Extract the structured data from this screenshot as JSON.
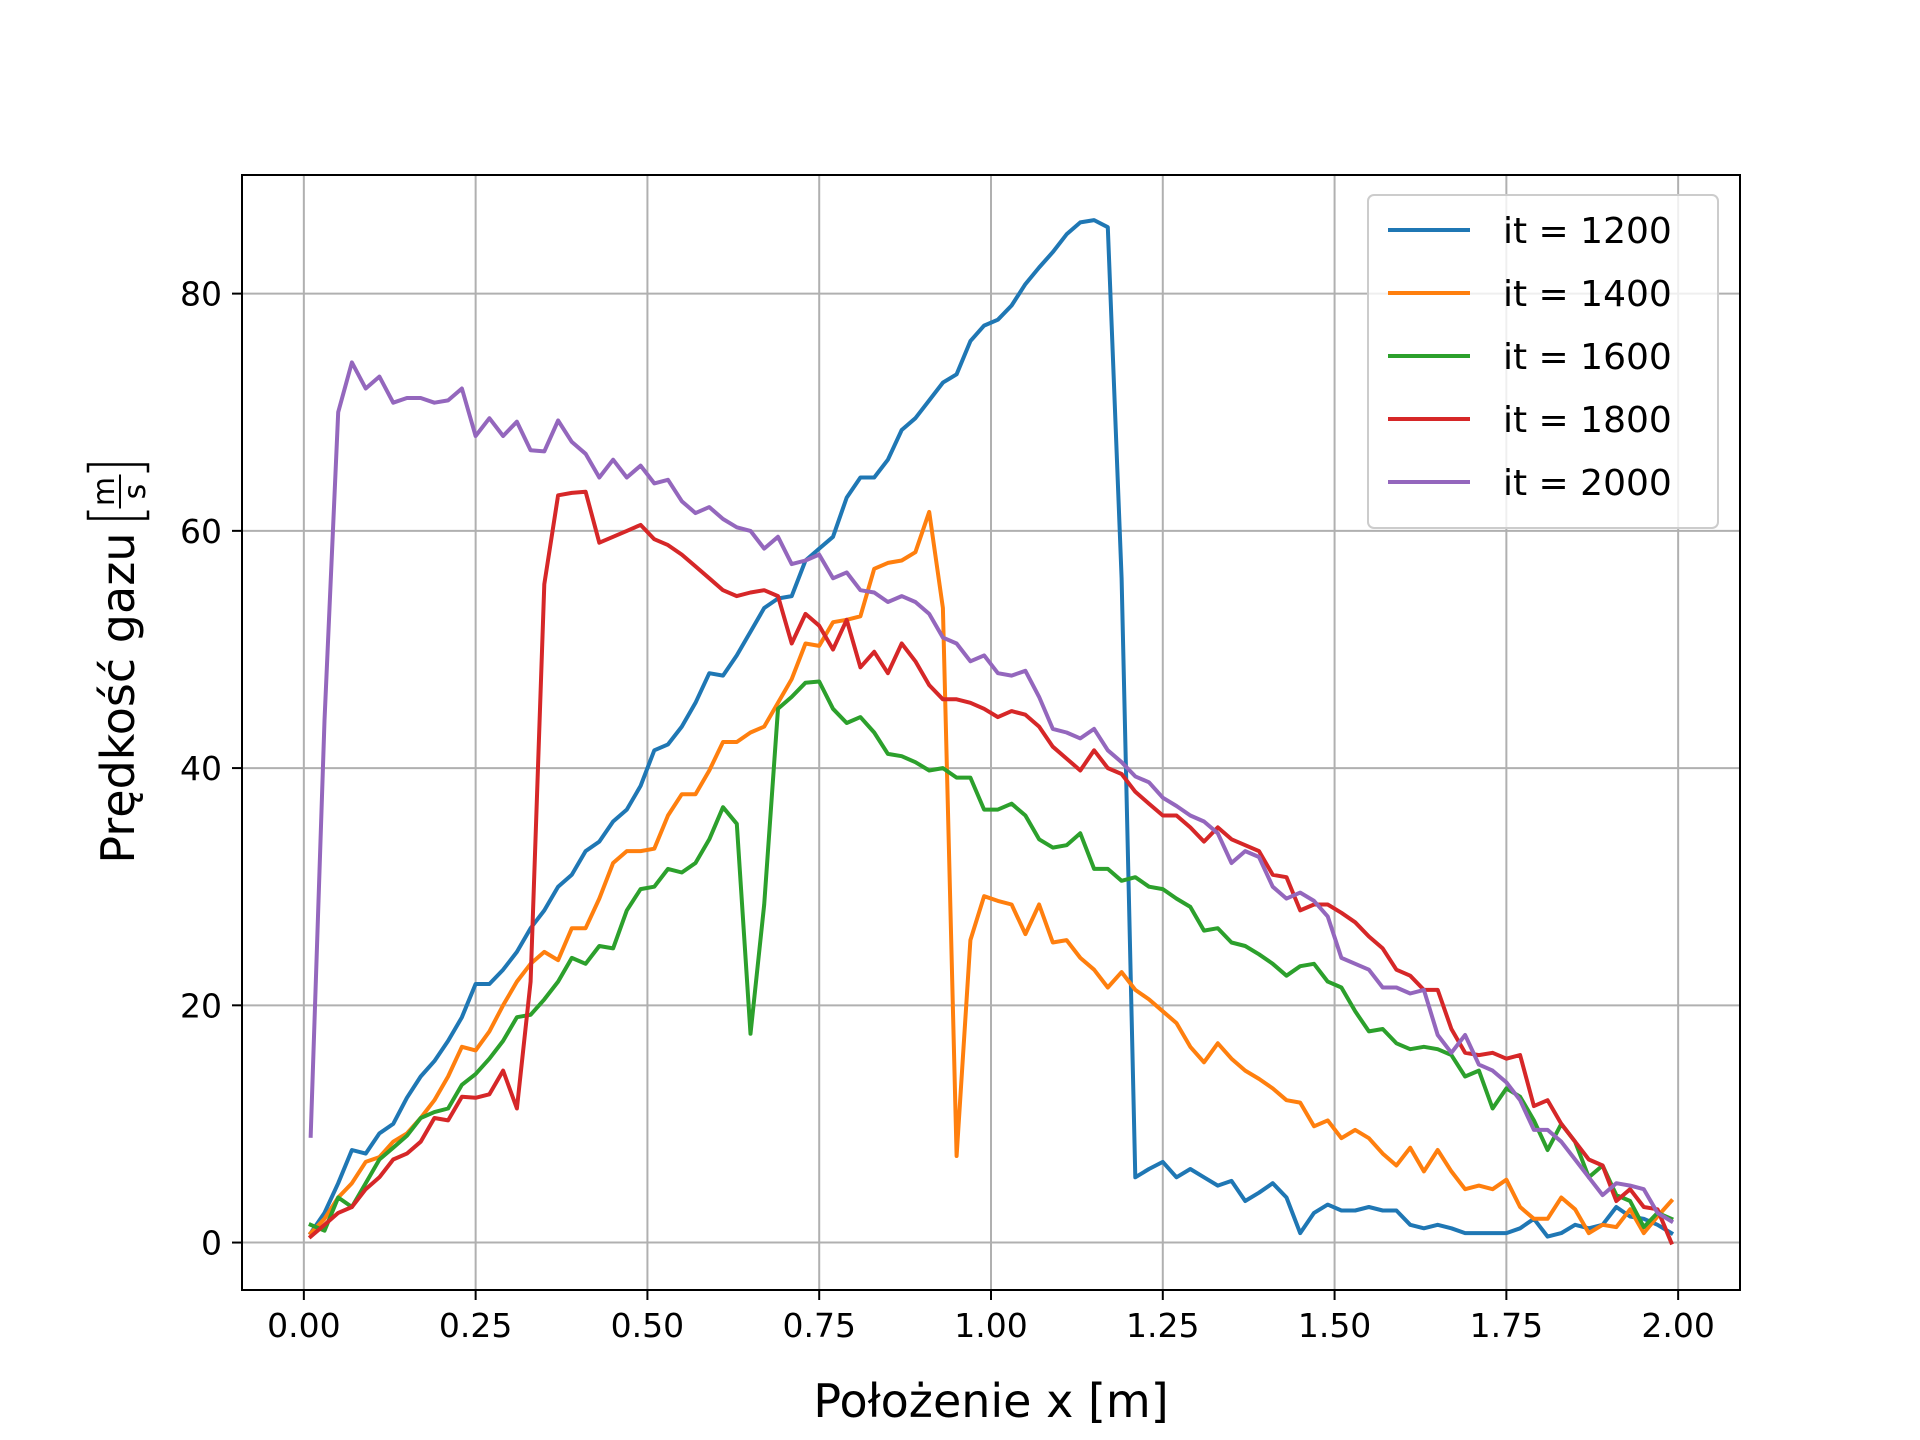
{
  "chart_data": {
    "type": "line",
    "title": "",
    "xlabel": "Położenie x [m]",
    "ylabel": "Prędkość gazu",
    "ylabel_unit_numerator": "m",
    "ylabel_unit_denominator": "s",
    "xlim": [
      -0.09,
      2.09
    ],
    "ylim": [
      -4,
      90
    ],
    "xticks": [
      0.0,
      0.25,
      0.5,
      0.75,
      1.0,
      1.25,
      1.5,
      1.75,
      2.0
    ],
    "xtick_labels": [
      "0.00",
      "0.25",
      "0.50",
      "0.75",
      "1.00",
      "1.25",
      "1.50",
      "1.75",
      "2.00"
    ],
    "yticks": [
      0,
      20,
      40,
      60,
      80
    ],
    "ytick_labels": [
      "0",
      "20",
      "40",
      "60",
      "80"
    ],
    "grid": true,
    "legend_position": "top-right",
    "series": [
      {
        "name": "it = 1200",
        "color": "#1f77b4",
        "x": [
          0.01,
          0.03,
          0.05,
          0.07,
          0.09,
          0.11,
          0.13,
          0.15,
          0.17,
          0.19,
          0.21,
          0.23,
          0.25,
          0.27,
          0.29,
          0.31,
          0.33,
          0.35,
          0.37,
          0.39,
          0.41,
          0.43,
          0.45,
          0.47,
          0.49,
          0.51,
          0.53,
          0.55,
          0.57,
          0.59,
          0.61,
          0.63,
          0.65,
          0.67,
          0.69,
          0.71,
          0.73,
          0.75,
          0.77,
          0.79,
          0.81,
          0.83,
          0.85,
          0.87,
          0.89,
          0.91,
          0.93,
          0.95,
          0.97,
          0.99,
          1.01,
          1.03,
          1.05,
          1.07,
          1.09,
          1.11,
          1.13,
          1.15,
          1.17,
          1.19,
          1.21,
          1.23,
          1.25,
          1.27,
          1.29,
          1.31,
          1.33,
          1.35,
          1.37,
          1.39,
          1.41,
          1.43,
          1.45,
          1.47,
          1.49,
          1.51,
          1.53,
          1.55,
          1.57,
          1.59,
          1.61,
          1.63,
          1.65,
          1.67,
          1.69,
          1.71,
          1.73,
          1.75,
          1.77,
          1.79,
          1.81,
          1.83,
          1.85,
          1.87,
          1.89,
          1.91,
          1.93,
          1.95,
          1.97,
          1.99
        ],
        "y": [
          0.8,
          2.5,
          5.0,
          7.8,
          7.5,
          9.2,
          10.0,
          12.2,
          14.0,
          15.3,
          17.0,
          19.0,
          21.8,
          21.8,
          23.0,
          24.5,
          26.5,
          28.0,
          30.0,
          31.0,
          33.0,
          33.8,
          35.5,
          36.5,
          38.5,
          41.5,
          42.0,
          43.5,
          45.5,
          48.0,
          47.8,
          49.5,
          51.5,
          53.5,
          54.3,
          54.5,
          57.5,
          58.5,
          59.5,
          62.8,
          64.5,
          64.5,
          66.0,
          68.5,
          69.5,
          71.0,
          72.5,
          73.2,
          76.0,
          77.3,
          77.8,
          79.0,
          80.8,
          82.2,
          83.5,
          85.0,
          86.0,
          86.2,
          85.6,
          56.0,
          5.5,
          6.2,
          6.8,
          5.5,
          6.2,
          5.5,
          4.8,
          5.2,
          3.5,
          4.2,
          5.0,
          3.8,
          0.8,
          2.5,
          3.2,
          2.7,
          2.7,
          3.0,
          2.7,
          2.7,
          1.5,
          1.2,
          1.5,
          1.2,
          0.8,
          0.8,
          0.8,
          0.8,
          1.2,
          2.0,
          0.5,
          0.8,
          1.5,
          1.2,
          1.5,
          3.0,
          2.2,
          2.0,
          1.5,
          0.8
        ]
      },
      {
        "name": "it = 1400",
        "color": "#ff7f0e",
        "x": [
          0.01,
          0.03,
          0.05,
          0.07,
          0.09,
          0.11,
          0.13,
          0.15,
          0.17,
          0.19,
          0.21,
          0.23,
          0.25,
          0.27,
          0.29,
          0.31,
          0.33,
          0.35,
          0.37,
          0.39,
          0.41,
          0.43,
          0.45,
          0.47,
          0.49,
          0.51,
          0.53,
          0.55,
          0.57,
          0.59,
          0.61,
          0.63,
          0.65,
          0.67,
          0.69,
          0.71,
          0.73,
          0.75,
          0.77,
          0.79,
          0.81,
          0.83,
          0.85,
          0.87,
          0.89,
          0.91,
          0.93,
          0.95,
          0.97,
          0.99,
          1.01,
          1.03,
          1.05,
          1.07,
          1.09,
          1.11,
          1.13,
          1.15,
          1.17,
          1.19,
          1.21,
          1.23,
          1.25,
          1.27,
          1.29,
          1.31,
          1.33,
          1.35,
          1.37,
          1.39,
          1.41,
          1.43,
          1.45,
          1.47,
          1.49,
          1.51,
          1.53,
          1.55,
          1.57,
          1.59,
          1.61,
          1.63,
          1.65,
          1.67,
          1.69,
          1.71,
          1.73,
          1.75,
          1.77,
          1.79,
          1.81,
          1.83,
          1.85,
          1.87,
          1.89,
          1.91,
          1.93,
          1.95,
          1.97,
          1.99
        ],
        "y": [
          0.8,
          2.0,
          3.8,
          5.0,
          6.8,
          7.2,
          8.5,
          9.2,
          10.5,
          12.0,
          14.0,
          16.5,
          16.2,
          17.8,
          20.0,
          22.0,
          23.5,
          24.5,
          23.8,
          26.5,
          26.5,
          29.0,
          32.0,
          33.0,
          33.0,
          33.2,
          36.0,
          37.8,
          37.8,
          39.8,
          42.2,
          42.2,
          43.0,
          43.5,
          45.5,
          47.5,
          50.5,
          50.3,
          52.3,
          52.5,
          52.8,
          56.8,
          57.3,
          57.5,
          58.2,
          61.6,
          53.5,
          7.3,
          25.5,
          29.2,
          28.8,
          28.5,
          26.0,
          28.5,
          25.3,
          25.5,
          24.0,
          23.0,
          21.5,
          22.8,
          21.3,
          20.5,
          19.5,
          18.5,
          16.5,
          15.2,
          16.8,
          15.5,
          14.5,
          13.8,
          13.0,
          12.0,
          11.8,
          9.8,
          10.3,
          8.8,
          9.5,
          8.8,
          7.5,
          6.5,
          8.0,
          6.0,
          7.8,
          6.0,
          4.5,
          4.8,
          4.5,
          5.3,
          3.0,
          2.0,
          2.0,
          3.8,
          2.8,
          0.8,
          1.5,
          1.3,
          2.8,
          0.8,
          2.2,
          3.5
        ]
      },
      {
        "name": "it = 1600",
        "color": "#2ca02c",
        "x": [
          0.01,
          0.03,
          0.05,
          0.07,
          0.09,
          0.11,
          0.13,
          0.15,
          0.17,
          0.19,
          0.21,
          0.23,
          0.25,
          0.27,
          0.29,
          0.31,
          0.33,
          0.35,
          0.37,
          0.39,
          0.41,
          0.43,
          0.45,
          0.47,
          0.49,
          0.51,
          0.53,
          0.55,
          0.57,
          0.59,
          0.61,
          0.63,
          0.65,
          0.67,
          0.69,
          0.71,
          0.73,
          0.75,
          0.77,
          0.79,
          0.81,
          0.83,
          0.85,
          0.87,
          0.89,
          0.91,
          0.93,
          0.95,
          0.97,
          0.99,
          1.01,
          1.03,
          1.05,
          1.07,
          1.09,
          1.11,
          1.13,
          1.15,
          1.17,
          1.19,
          1.21,
          1.23,
          1.25,
          1.27,
          1.29,
          1.31,
          1.33,
          1.35,
          1.37,
          1.39,
          1.41,
          1.43,
          1.45,
          1.47,
          1.49,
          1.51,
          1.53,
          1.55,
          1.57,
          1.59,
          1.61,
          1.63,
          1.65,
          1.67,
          1.69,
          1.71,
          1.73,
          1.75,
          1.77,
          1.79,
          1.81,
          1.83,
          1.85,
          1.87,
          1.89,
          1.91,
          1.93,
          1.95,
          1.97,
          1.99
        ],
        "y": [
          1.5,
          1.0,
          3.8,
          3.0,
          5.0,
          7.0,
          8.0,
          9.0,
          10.5,
          11.0,
          11.3,
          13.3,
          14.2,
          15.5,
          17.0,
          19.0,
          19.2,
          20.5,
          22.0,
          24.0,
          23.5,
          25.0,
          24.8,
          28.0,
          29.8,
          30.0,
          31.5,
          31.2,
          32.0,
          34.0,
          36.7,
          35.3,
          17.6,
          28.5,
          45.0,
          46.0,
          47.2,
          47.3,
          45.0,
          43.8,
          44.3,
          43.0,
          41.2,
          41.0,
          40.5,
          39.8,
          40.0,
          39.2,
          39.2,
          36.5,
          36.5,
          37.0,
          36.0,
          34.0,
          33.3,
          33.5,
          34.5,
          31.5,
          31.5,
          30.5,
          30.8,
          30.0,
          29.8,
          29.0,
          28.3,
          26.3,
          26.5,
          25.3,
          25.0,
          24.3,
          23.5,
          22.5,
          23.3,
          23.5,
          22.0,
          21.5,
          19.5,
          17.8,
          18.0,
          16.8,
          16.3,
          16.5,
          16.3,
          15.8,
          14.0,
          14.5,
          11.3,
          13.0,
          12.3,
          10.3,
          7.8,
          10.0,
          8.5,
          5.5,
          6.5,
          4.0,
          3.5,
          1.3,
          2.5,
          2.0
        ]
      },
      {
        "name": "it = 1800",
        "color": "#d62728",
        "x": [
          0.01,
          0.03,
          0.05,
          0.07,
          0.09,
          0.11,
          0.13,
          0.15,
          0.17,
          0.19,
          0.21,
          0.23,
          0.25,
          0.27,
          0.29,
          0.31,
          0.33,
          0.35,
          0.37,
          0.39,
          0.41,
          0.43,
          0.45,
          0.47,
          0.49,
          0.51,
          0.53,
          0.55,
          0.57,
          0.59,
          0.61,
          0.63,
          0.65,
          0.67,
          0.69,
          0.71,
          0.73,
          0.75,
          0.77,
          0.79,
          0.81,
          0.83,
          0.85,
          0.87,
          0.89,
          0.91,
          0.93,
          0.95,
          0.97,
          0.99,
          1.01,
          1.03,
          1.05,
          1.07,
          1.09,
          1.11,
          1.13,
          1.15,
          1.17,
          1.19,
          1.21,
          1.23,
          1.25,
          1.27,
          1.29,
          1.31,
          1.33,
          1.35,
          1.37,
          1.39,
          1.41,
          1.43,
          1.45,
          1.47,
          1.49,
          1.51,
          1.53,
          1.55,
          1.57,
          1.59,
          1.61,
          1.63,
          1.65,
          1.67,
          1.69,
          1.71,
          1.73,
          1.75,
          1.77,
          1.79,
          1.81,
          1.83,
          1.85,
          1.87,
          1.89,
          1.91,
          1.93,
          1.95,
          1.97,
          1.99
        ],
        "y": [
          0.5,
          1.5,
          2.5,
          3.0,
          4.5,
          5.5,
          7.0,
          7.5,
          8.5,
          10.5,
          10.3,
          12.3,
          12.2,
          12.5,
          14.5,
          11.3,
          22.0,
          55.5,
          63.0,
          63.2,
          63.3,
          59.0,
          59.5,
          60.0,
          60.5,
          59.3,
          58.8,
          58.0,
          57.0,
          56.0,
          55.0,
          54.5,
          54.8,
          55.0,
          54.5,
          50.5,
          53.0,
          52.0,
          50.0,
          52.5,
          48.5,
          49.8,
          48.0,
          50.5,
          49.0,
          47.0,
          45.8,
          45.8,
          45.5,
          45.0,
          44.3,
          44.8,
          44.5,
          43.5,
          41.8,
          40.8,
          39.8,
          41.5,
          40.0,
          39.5,
          38.0,
          37.0,
          36.0,
          36.0,
          35.0,
          33.8,
          35.0,
          34.0,
          33.5,
          33.0,
          31.0,
          30.8,
          28.0,
          28.5,
          28.5,
          27.8,
          27.0,
          25.8,
          24.8,
          23.0,
          22.5,
          21.3,
          21.3,
          18.0,
          16.0,
          15.8,
          16.0,
          15.5,
          15.8,
          11.5,
          12.0,
          10.0,
          8.5,
          7.0,
          6.5,
          3.5,
          4.5,
          3.0,
          2.8,
          0.0
        ]
      },
      {
        "name": "it = 2000",
        "color": "#9467bd",
        "x": [
          0.01,
          0.03,
          0.05,
          0.07,
          0.09,
          0.11,
          0.13,
          0.15,
          0.17,
          0.19,
          0.21,
          0.23,
          0.25,
          0.27,
          0.29,
          0.31,
          0.33,
          0.35,
          0.37,
          0.39,
          0.41,
          0.43,
          0.45,
          0.47,
          0.49,
          0.51,
          0.53,
          0.55,
          0.57,
          0.59,
          0.61,
          0.63,
          0.65,
          0.67,
          0.69,
          0.71,
          0.73,
          0.75,
          0.77,
          0.79,
          0.81,
          0.83,
          0.85,
          0.87,
          0.89,
          0.91,
          0.93,
          0.95,
          0.97,
          0.99,
          1.01,
          1.03,
          1.05,
          1.07,
          1.09,
          1.11,
          1.13,
          1.15,
          1.17,
          1.19,
          1.21,
          1.23,
          1.25,
          1.27,
          1.29,
          1.31,
          1.33,
          1.35,
          1.37,
          1.39,
          1.41,
          1.43,
          1.45,
          1.47,
          1.49,
          1.51,
          1.53,
          1.55,
          1.57,
          1.59,
          1.61,
          1.63,
          1.65,
          1.67,
          1.69,
          1.71,
          1.73,
          1.75,
          1.77,
          1.79,
          1.81,
          1.83,
          1.85,
          1.87,
          1.89,
          1.91,
          1.93,
          1.95,
          1.97,
          1.99
        ],
        "y": [
          9.0,
          44.0,
          70.0,
          74.2,
          72.0,
          73.0,
          70.8,
          71.2,
          71.2,
          70.8,
          71.0,
          72.0,
          68.0,
          69.5,
          68.0,
          69.2,
          66.8,
          66.7,
          69.3,
          67.5,
          66.5,
          64.5,
          66.0,
          64.5,
          65.5,
          64.0,
          64.3,
          62.5,
          61.5,
          62.0,
          61.0,
          60.3,
          60.0,
          58.5,
          59.5,
          57.2,
          57.5,
          58.0,
          56.0,
          56.5,
          55.0,
          54.8,
          54.0,
          54.5,
          54.0,
          53.0,
          51.0,
          50.5,
          49.0,
          49.5,
          48.0,
          47.8,
          48.2,
          46.0,
          43.3,
          43.0,
          42.5,
          43.3,
          41.5,
          40.5,
          39.3,
          38.8,
          37.5,
          36.8,
          36.0,
          35.5,
          34.5,
          32.0,
          33.0,
          32.5,
          30.0,
          29.0,
          29.5,
          28.8,
          27.5,
          24.0,
          23.5,
          23.0,
          21.5,
          21.5,
          21.0,
          21.3,
          17.5,
          16.0,
          17.5,
          15.0,
          14.5,
          13.5,
          12.0,
          9.5,
          9.5,
          8.5,
          7.0,
          5.5,
          4.0,
          5.0,
          4.8,
          4.5,
          2.5,
          1.8
        ]
      }
    ]
  }
}
